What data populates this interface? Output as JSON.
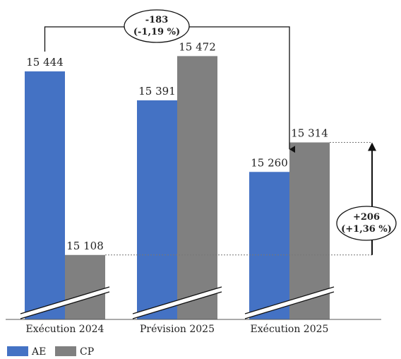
{
  "chart_data": {
    "type": "bar",
    "categories": [
      "Exécution 2024",
      "Prévision 2025",
      "Exécution 2025"
    ],
    "series": [
      {
        "name": "AE",
        "color": "#4472C4",
        "values": [
          15444,
          15391,
          15260
        ],
        "labels": [
          "15 444",
          "15 391",
          "15 260"
        ]
      },
      {
        "name": "CP",
        "color": "#808080",
        "values": [
          15108,
          15472,
          15314
        ],
        "labels": [
          "15 108",
          "15 472",
          "15 314"
        ]
      }
    ],
    "ylim": [
      14990,
      15510
    ],
    "axis_break": true,
    "grid": false,
    "legend_position": "bottom-left",
    "annotations": [
      {
        "from": "Exécution 2024 AE",
        "to": "Exécution 2025 AE",
        "line1": "-183",
        "line2": "(-1,19 %)"
      },
      {
        "from": "Exécution 2024 CP",
        "to": "Exécution 2025 CP",
        "line1": "+206",
        "line2": "(+1,36 %)"
      }
    ]
  }
}
